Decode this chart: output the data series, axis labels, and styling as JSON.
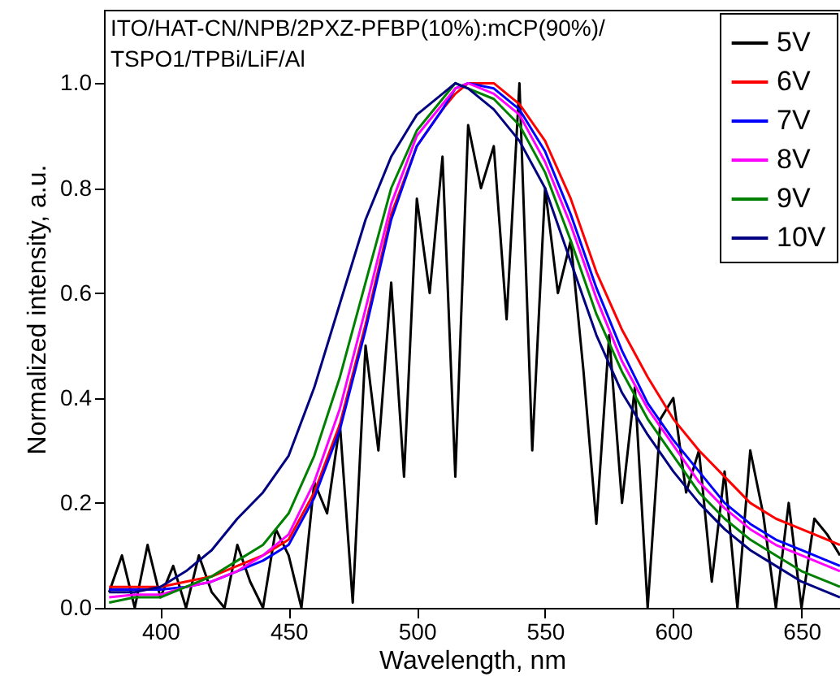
{
  "chart_data": {
    "type": "line",
    "xlabel": "Wavelength, nm",
    "ylabel": "Normalized intensity, a.u.",
    "annotations": [
      "ITO/HAT-CN/NPB/2PXZ-PFBP(10%):mCP(90%)/",
      "TSPO1/TPBi/LiF/Al"
    ],
    "x": [
      380,
      390,
      400,
      410,
      420,
      430,
      440,
      450,
      460,
      470,
      480,
      490,
      500,
      510,
      515,
      520,
      530,
      540,
      550,
      560,
      570,
      580,
      590,
      600,
      610,
      620,
      630,
      640,
      650,
      660,
      665
    ],
    "series": [
      {
        "name": "5V",
        "color": "#000000",
        "x": [
          380,
          385,
          390,
          395,
          400,
          405,
          410,
          415,
          420,
          425,
          430,
          435,
          440,
          445,
          450,
          455,
          460,
          465,
          470,
          475,
          480,
          485,
          490,
          495,
          500,
          505,
          510,
          515,
          520,
          525,
          530,
          535,
          540,
          545,
          550,
          555,
          560,
          565,
          570,
          575,
          580,
          585,
          590,
          595,
          600,
          605,
          610,
          615,
          620,
          625,
          630,
          635,
          640,
          645,
          650,
          655,
          660,
          665
        ],
        "values": [
          0.03,
          0.1,
          0.0,
          0.12,
          0.02,
          0.08,
          0.0,
          0.1,
          0.03,
          0.0,
          0.12,
          0.05,
          0.0,
          0.15,
          0.1,
          0.0,
          0.24,
          0.18,
          0.35,
          0.01,
          0.5,
          0.3,
          0.62,
          0.25,
          0.78,
          0.6,
          0.86,
          0.25,
          0.92,
          0.8,
          0.88,
          0.55,
          1.0,
          0.3,
          0.8,
          0.6,
          0.7,
          0.45,
          0.16,
          0.52,
          0.2,
          0.42,
          0.0,
          0.36,
          0.4,
          0.22,
          0.3,
          0.05,
          0.26,
          0.0,
          0.3,
          0.18,
          0.0,
          0.2,
          0.0,
          0.17,
          0.14,
          0.1
        ]
      },
      {
        "name": "6V",
        "color": "#ff0000",
        "values": [
          0.04,
          0.04,
          0.04,
          0.05,
          0.06,
          0.08,
          0.1,
          0.13,
          0.22,
          0.35,
          0.54,
          0.75,
          0.88,
          0.95,
          0.98,
          1.0,
          1.0,
          0.96,
          0.89,
          0.78,
          0.64,
          0.53,
          0.44,
          0.36,
          0.3,
          0.25,
          0.2,
          0.17,
          0.15,
          0.13,
          0.12
        ]
      },
      {
        "name": "7V",
        "color": "#0000ff",
        "values": [
          0.035,
          0.035,
          0.035,
          0.04,
          0.05,
          0.07,
          0.09,
          0.12,
          0.21,
          0.34,
          0.53,
          0.74,
          0.88,
          0.95,
          0.99,
          1.0,
          0.99,
          0.95,
          0.87,
          0.75,
          0.61,
          0.49,
          0.39,
          0.32,
          0.26,
          0.2,
          0.16,
          0.13,
          0.11,
          0.09,
          0.08
        ]
      },
      {
        "name": "8V",
        "color": "#ff00ff",
        "values": [
          0.02,
          0.025,
          0.025,
          0.04,
          0.05,
          0.07,
          0.1,
          0.14,
          0.24,
          0.38,
          0.57,
          0.77,
          0.9,
          0.96,
          0.99,
          1.0,
          0.98,
          0.94,
          0.85,
          0.73,
          0.59,
          0.47,
          0.38,
          0.31,
          0.24,
          0.19,
          0.15,
          0.12,
          0.1,
          0.08,
          0.07
        ]
      },
      {
        "name": "9V",
        "color": "#008000",
        "values": [
          0.01,
          0.02,
          0.02,
          0.04,
          0.06,
          0.09,
          0.12,
          0.18,
          0.29,
          0.44,
          0.62,
          0.8,
          0.91,
          0.97,
          1.0,
          0.99,
          0.97,
          0.92,
          0.83,
          0.7,
          0.56,
          0.45,
          0.36,
          0.29,
          0.22,
          0.17,
          0.13,
          0.1,
          0.07,
          0.05,
          0.04
        ]
      },
      {
        "name": "10V",
        "color": "#000080",
        "values": [
          0.03,
          0.03,
          0.04,
          0.07,
          0.11,
          0.17,
          0.22,
          0.29,
          0.42,
          0.58,
          0.74,
          0.86,
          0.94,
          0.98,
          1.0,
          0.99,
          0.95,
          0.89,
          0.8,
          0.66,
          0.52,
          0.41,
          0.33,
          0.26,
          0.2,
          0.15,
          0.11,
          0.08,
          0.05,
          0.03,
          0.02
        ]
      }
    ],
    "xlim": [
      378,
      665
    ],
    "ylim": [
      0,
      1.14
    ],
    "xticks": [
      400,
      450,
      500,
      550,
      600,
      650
    ],
    "yticks": [
      {
        "value": 0,
        "label": "0.0"
      },
      {
        "value": 0.2,
        "label": "0.2"
      },
      {
        "value": 0.4,
        "label": "0.4"
      },
      {
        "value": 0.6,
        "label": "0.6"
      },
      {
        "value": 0.8,
        "label": "0.8"
      },
      {
        "value": 1,
        "label": "1.0"
      }
    ],
    "legend": "top right",
    "grid": false,
    "marker": "none",
    "line_style": "solid"
  }
}
